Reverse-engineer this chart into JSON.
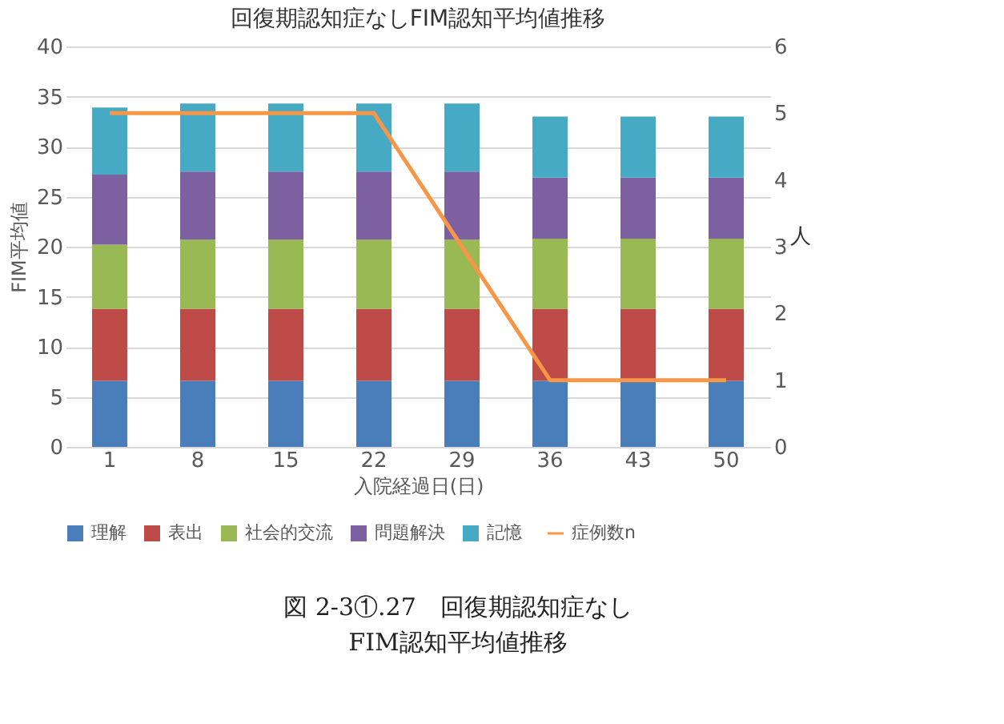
{
  "chart_data": {
    "type": "bar",
    "title": "回復期認知症なしFIM認知平均値推移",
    "xlabel": "入院経過日(日)",
    "ylabel": "FIM平均値",
    "y2label": "人",
    "categories": [
      "1",
      "8",
      "15",
      "22",
      "29",
      "36",
      "43",
      "50"
    ],
    "stacked": true,
    "series": [
      {
        "name": "理解",
        "color": "#4a7ebb",
        "values": [
          6.6,
          6.6,
          6.6,
          6.6,
          6.6,
          6.6,
          6.6,
          6.6
        ]
      },
      {
        "name": "表出",
        "color": "#be4b48",
        "values": [
          7.2,
          7.2,
          7.2,
          7.2,
          7.2,
          7.2,
          7.2,
          7.2
        ]
      },
      {
        "name": "社会的交流",
        "color": "#98b954",
        "values": [
          6.4,
          6.9,
          6.9,
          6.9,
          6.9,
          7.0,
          7.0,
          7.0
        ]
      },
      {
        "name": "問題解決",
        "color": "#7d60a0",
        "values": [
          7.0,
          6.8,
          6.8,
          6.8,
          6.8,
          6.1,
          6.1,
          6.1
        ]
      },
      {
        "name": "記憶",
        "color": "#46aac5",
        "values": [
          6.7,
          6.8,
          6.8,
          6.8,
          6.8,
          6.1,
          6.1,
          6.1
        ]
      },
      {
        "name": "症例数n",
        "color": "#f79646",
        "type": "line",
        "axis": "y2",
        "values": [
          5,
          5,
          5,
          5,
          3,
          1,
          1,
          1
        ]
      }
    ],
    "ylim": [
      0,
      40
    ],
    "yticks": [
      0,
      5,
      10,
      15,
      20,
      25,
      30,
      35,
      40
    ],
    "y2lim": [
      0,
      6
    ],
    "y2ticks": [
      0,
      1,
      2,
      3,
      4,
      5,
      6
    ],
    "grid": "y",
    "legend": "bottom",
    "annotations": [
      "図 2-3①.27　回復期認知症なし",
      "FIM認知平均値推移"
    ]
  }
}
